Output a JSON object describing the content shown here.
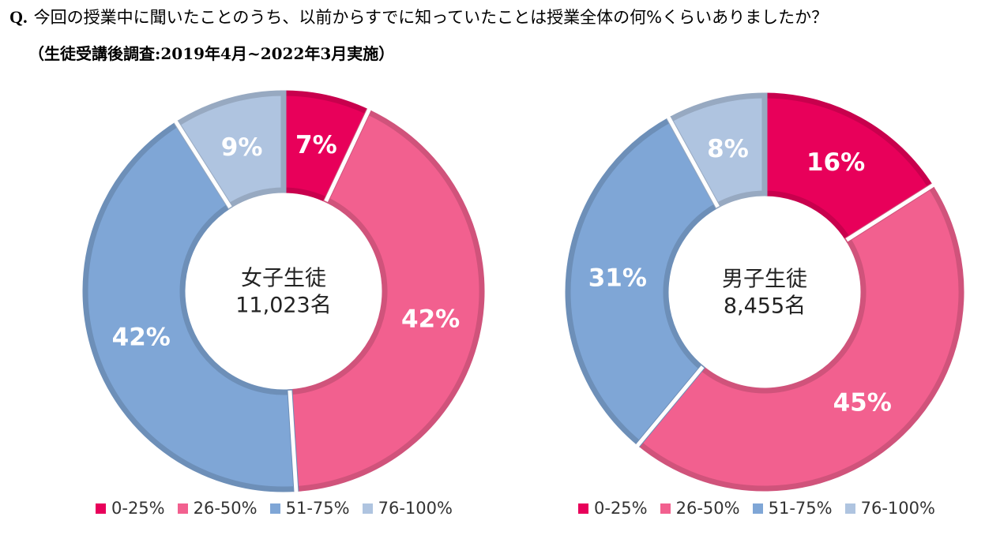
{
  "question": {
    "prefix": "Q.",
    "text": "今回の授業中に聞いたことのうち、以前からすでに知っていたことは授業全体の何%くらいありましたか？"
  },
  "subtitle": "（生徒受講後調査:2019年4月~2022年3月実施）",
  "colors": {
    "0-25%": "#E8005A",
    "26-50%": "#F2608F",
    "51-75%": "#7FA6D6",
    "76-100%": "#AFC4E0"
  },
  "chart_data": [
    {
      "type": "pie",
      "donut": true,
      "center_label": [
        "女子生徒",
        "11,023名"
      ],
      "categories": [
        "0-25%",
        "26-50%",
        "51-75%",
        "76-100%"
      ],
      "values": [
        7,
        42,
        42,
        9
      ],
      "labels": [
        "7%",
        "42%",
        "42%",
        "9%"
      ],
      "legend": [
        "0-25%",
        "26-50%",
        "51-75%",
        "76-100%"
      ],
      "legend_position": "bottom"
    },
    {
      "type": "pie",
      "donut": true,
      "center_label": [
        "男子生徒",
        "8,455名"
      ],
      "categories": [
        "0-25%",
        "26-50%",
        "51-75%",
        "76-100%"
      ],
      "values": [
        16,
        45,
        31,
        8
      ],
      "labels": [
        "16%",
        "45%",
        "31%",
        "8%"
      ],
      "legend": [
        "0-25%",
        "26-50%",
        "51-75%",
        "76-100%"
      ],
      "legend_position": "bottom"
    }
  ]
}
